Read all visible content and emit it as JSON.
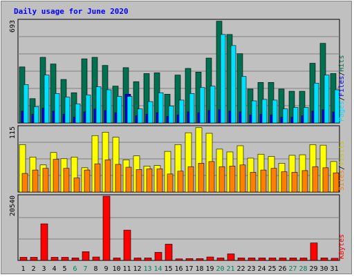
{
  "title": "Daily usage for June 2020",
  "colors": {
    "hits": "#007050",
    "files": "#0000ff",
    "pages": "#00e0ff",
    "visits": "#ffff00",
    "sites": "#ff8000",
    "kbytes": "#ff0000",
    "weekend_label": "#00805c",
    "weekday_label": "#000000"
  },
  "chart_data": [
    {
      "type": "bar",
      "panel": "top",
      "ymax_label": "693",
      "ylim": [
        0,
        693
      ],
      "side_labels": [
        "Pages",
        "/",
        "Files",
        "/",
        "Hits"
      ],
      "categories": [
        "1",
        "2",
        "3",
        "4",
        "5",
        "6",
        "7",
        "8",
        "9",
        "10",
        "11",
        "12",
        "13",
        "14",
        "15",
        "16",
        "17",
        "18",
        "19",
        "20",
        "21",
        "22",
        "23",
        "24",
        "25",
        "26",
        "27",
        "28",
        "29",
        "30",
        "31"
      ],
      "weekend_days": [
        "6",
        "7",
        "13",
        "14",
        "20",
        "21",
        "27",
        "28"
      ],
      "series": [
        {
          "name": "Hits",
          "values": [
            380,
            165,
            445,
            400,
            295,
            205,
            435,
            445,
            390,
            250,
            375,
            280,
            335,
            340,
            195,
            325,
            370,
            345,
            440,
            690,
            600,
            470,
            230,
            275,
            275,
            230,
            215,
            215,
            405,
            540,
            335
          ]
        },
        {
          "name": "Files",
          "values": [
            80,
            60,
            100,
            80,
            60,
            40,
            75,
            95,
            85,
            70,
            195,
            50,
            60,
            70,
            45,
            55,
            75,
            70,
            85,
            90,
            80,
            75,
            55,
            60,
            55,
            40,
            40,
            50,
            80,
            90,
            75
          ]
        },
        {
          "name": "Pages",
          "values": [
            260,
            110,
            325,
            200,
            175,
            130,
            190,
            245,
            225,
            180,
            180,
            95,
            145,
            205,
            115,
            155,
            200,
            240,
            250,
            600,
            525,
            315,
            150,
            160,
            155,
            95,
            105,
            105,
            270,
            325,
            225
          ]
        }
      ]
    },
    {
      "type": "bar",
      "panel": "middle",
      "ymax_label": "115",
      "ylim": [
        0,
        115
      ],
      "side_labels": [
        "Sites",
        "/",
        "Visits"
      ],
      "categories": [
        "1",
        "2",
        "3",
        "4",
        "5",
        "6",
        "7",
        "8",
        "9",
        "10",
        "11",
        "12",
        "13",
        "14",
        "15",
        "16",
        "17",
        "18",
        "19",
        "20",
        "21",
        "22",
        "23",
        "24",
        "25",
        "26",
        "27",
        "28",
        "29",
        "30",
        "31"
      ],
      "series": [
        {
          "name": "Visits",
          "values": [
            84,
            62,
            48,
            70,
            59,
            62,
            43,
            100,
            106,
            97,
            57,
            64,
            46,
            47,
            72,
            84,
            105,
            114,
            104,
            76,
            71,
            82,
            60,
            67,
            63,
            51,
            65,
            66,
            84,
            83,
            54
          ]
        },
        {
          "name": "Sites",
          "values": [
            33,
            39,
            42,
            58,
            42,
            25,
            39,
            50,
            57,
            49,
            44,
            40,
            41,
            41,
            32,
            37,
            45,
            51,
            54,
            45,
            46,
            48,
            35,
            39,
            42,
            36,
            35,
            38,
            45,
            43,
            34
          ]
        }
      ]
    },
    {
      "type": "bar",
      "panel": "bottom",
      "ymax_label": "20540",
      "ylim": [
        0,
        20540
      ],
      "side_labels": [
        "KBytes"
      ],
      "categories": [
        "1",
        "2",
        "3",
        "4",
        "5",
        "6",
        "7",
        "8",
        "9",
        "10",
        "11",
        "12",
        "13",
        "14",
        "15",
        "16",
        "17",
        "18",
        "19",
        "20",
        "21",
        "22",
        "23",
        "24",
        "25",
        "26",
        "27",
        "28",
        "29",
        "30",
        "31"
      ],
      "series": [
        {
          "name": "KBytes",
          "values": [
            1000,
            1000,
            11700,
            1000,
            1000,
            800,
            2800,
            1100,
            20540,
            800,
            9700,
            800,
            800,
            2600,
            5200,
            500,
            600,
            600,
            1100,
            800,
            2100,
            800,
            800,
            800,
            800,
            800,
            800,
            800,
            5600,
            800,
            700
          ]
        }
      ]
    }
  ]
}
